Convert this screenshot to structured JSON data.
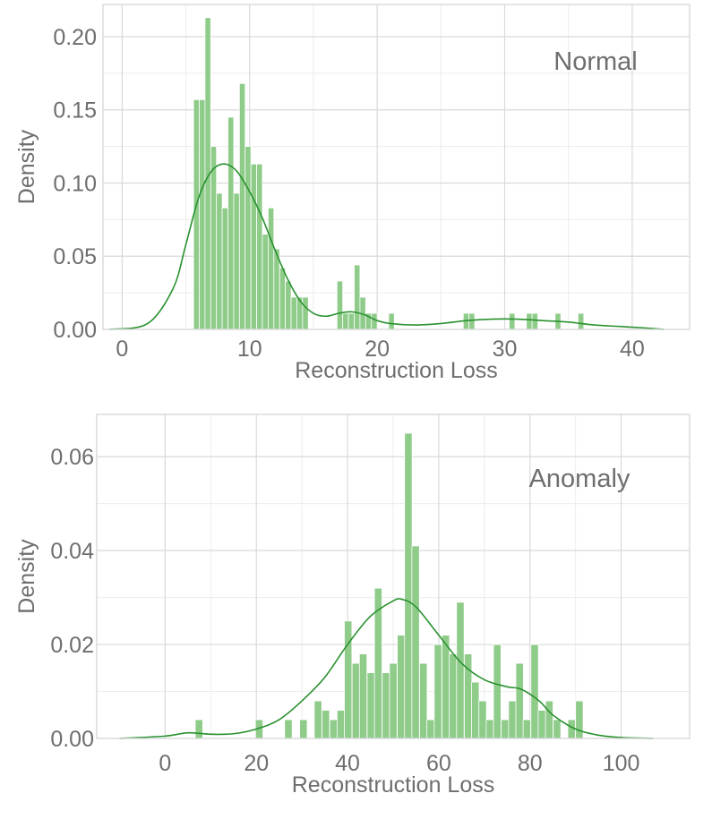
{
  "chart_data": [
    {
      "type": "histogram",
      "annotation": "Normal",
      "xlabel": "Reconstruction Loss",
      "ylabel": "Density",
      "xlim": [
        -1.5,
        44.5
      ],
      "ylim": [
        0,
        0.222
      ],
      "xticks": [
        0,
        10,
        20,
        30,
        40
      ],
      "xtick_labels": [
        "0",
        "10",
        "20",
        "30",
        "40"
      ],
      "yticks": [
        0,
        0.05,
        0.1,
        0.15,
        0.2
      ],
      "ytick_labels": [
        "0.00",
        "0.05",
        "0.10",
        "0.15",
        "0.20"
      ],
      "minor_grid_x": [
        5,
        15,
        25,
        35
      ],
      "minor_grid_y": [
        0.025,
        0.075,
        0.125,
        0.175
      ],
      "grid": true,
      "bar_color": "#8fcc8a",
      "kde_color": "#2a9130",
      "bin_width": 0.45,
      "bins": [
        [
          5.6,
          0.157
        ],
        [
          6.05,
          0.157
        ],
        [
          6.5,
          0.213
        ],
        [
          6.95,
          0.125
        ],
        [
          7.4,
          0.093
        ],
        [
          7.85,
          0.083
        ],
        [
          8.3,
          0.145
        ],
        [
          8.75,
          0.093
        ],
        [
          9.2,
          0.168
        ],
        [
          9.65,
          0.125
        ],
        [
          10.1,
          0.113
        ],
        [
          10.55,
          0.113
        ],
        [
          11.0,
          0.065
        ],
        [
          11.45,
          0.083
        ],
        [
          11.9,
          0.055
        ],
        [
          12.35,
          0.042
        ],
        [
          12.8,
          0.033
        ],
        [
          13.25,
          0.022
        ],
        [
          13.7,
          0.022
        ],
        [
          14.15,
          0.022
        ],
        [
          16.85,
          0.033
        ],
        [
          17.3,
          0.011
        ],
        [
          17.75,
          0.011
        ],
        [
          18.2,
          0.044
        ],
        [
          18.65,
          0.022
        ],
        [
          19.1,
          0.011
        ],
        [
          19.55,
          0.011
        ],
        [
          20.9,
          0.011
        ],
        [
          26.75,
          0.011
        ],
        [
          27.2,
          0.011
        ],
        [
          30.35,
          0.011
        ],
        [
          31.7,
          0.011
        ],
        [
          32.15,
          0.011
        ],
        [
          33.95,
          0.011
        ],
        [
          35.75,
          0.011
        ]
      ],
      "kde": [
        [
          -1,
          0.0
        ],
        [
          2,
          0.004
        ],
        [
          4,
          0.028
        ],
        [
          5,
          0.058
        ],
        [
          6,
          0.09
        ],
        [
          7,
          0.108
        ],
        [
          8,
          0.113
        ],
        [
          9,
          0.108
        ],
        [
          10,
          0.094
        ],
        [
          11,
          0.076
        ],
        [
          12,
          0.054
        ],
        [
          13,
          0.034
        ],
        [
          14,
          0.019
        ],
        [
          15,
          0.011
        ],
        [
          16,
          0.009
        ],
        [
          17,
          0.011
        ],
        [
          18,
          0.012
        ],
        [
          19,
          0.01
        ],
        [
          20,
          0.006
        ],
        [
          21,
          0.004
        ],
        [
          23,
          0.003
        ],
        [
          25,
          0.004
        ],
        [
          27,
          0.006
        ],
        [
          29,
          0.007
        ],
        [
          31,
          0.007
        ],
        [
          33,
          0.006
        ],
        [
          35,
          0.005
        ],
        [
          37,
          0.003
        ],
        [
          39,
          0.002
        ],
        [
          41,
          0.001
        ],
        [
          42.5,
          0.0
        ]
      ]
    },
    {
      "type": "histogram",
      "annotation": "Anomaly",
      "xlabel": "Reconstruction Loss",
      "ylabel": "Density",
      "xlim": [
        -15,
        115
      ],
      "ylim": [
        0,
        0.069
      ],
      "xticks": [
        0,
        20,
        40,
        60,
        80,
        100
      ],
      "xtick_labels": [
        "0",
        "20",
        "40",
        "60",
        "80",
        "100"
      ],
      "yticks": [
        0,
        0.02,
        0.04,
        0.06
      ],
      "ytick_labels": [
        "0.00",
        "0.02",
        "0.04",
        "0.06"
      ],
      "minor_grid_x": [
        10,
        30,
        50,
        70,
        90
      ],
      "minor_grid_y": [
        0.01,
        0.03,
        0.05
      ],
      "grid": true,
      "bar_color": "#8fcc8a",
      "kde_color": "#2a9130",
      "bin_width": 1.65,
      "bins": [
        [
          6.6,
          0.004
        ],
        [
          19.8,
          0.004
        ],
        [
          26.2,
          0.004
        ],
        [
          29.5,
          0.004
        ],
        [
          32.7,
          0.008
        ],
        [
          34.4,
          0.006
        ],
        [
          36.1,
          0.004
        ],
        [
          37.7,
          0.006
        ],
        [
          39.3,
          0.025
        ],
        [
          41.0,
          0.016
        ],
        [
          42.6,
          0.018
        ],
        [
          44.3,
          0.014
        ],
        [
          45.9,
          0.032
        ],
        [
          47.6,
          0.014
        ],
        [
          49.2,
          0.016
        ],
        [
          50.9,
          0.022
        ],
        [
          52.5,
          0.065
        ],
        [
          54.1,
          0.041
        ],
        [
          55.8,
          0.016
        ],
        [
          57.4,
          0.004
        ],
        [
          59.0,
          0.02
        ],
        [
          60.7,
          0.022
        ],
        [
          62.3,
          0.018
        ],
        [
          63.9,
          0.029
        ],
        [
          65.6,
          0.018
        ],
        [
          67.2,
          0.012
        ],
        [
          68.8,
          0.008
        ],
        [
          70.4,
          0.004
        ],
        [
          72.0,
          0.02
        ],
        [
          73.7,
          0.004
        ],
        [
          75.3,
          0.008
        ],
        [
          76.9,
          0.016
        ],
        [
          78.5,
          0.004
        ],
        [
          80.2,
          0.02
        ],
        [
          81.8,
          0.006
        ],
        [
          83.4,
          0.008
        ],
        [
          85.1,
          0.004
        ],
        [
          88.3,
          0.004
        ],
        [
          90.0,
          0.008
        ]
      ],
      "kde": [
        [
          -10,
          0.0
        ],
        [
          0,
          0.0005
        ],
        [
          5,
          0.0012
        ],
        [
          10,
          0.0009
        ],
        [
          15,
          0.001
        ],
        [
          20,
          0.002
        ],
        [
          25,
          0.004
        ],
        [
          30,
          0.008
        ],
        [
          35,
          0.013
        ],
        [
          40,
          0.02
        ],
        [
          45,
          0.026
        ],
        [
          50,
          0.0293
        ],
        [
          52,
          0.0296
        ],
        [
          55,
          0.028
        ],
        [
          60,
          0.022
        ],
        [
          65,
          0.016
        ],
        [
          70,
          0.0125
        ],
        [
          75,
          0.011
        ],
        [
          78,
          0.0105
        ],
        [
          82,
          0.008
        ],
        [
          85,
          0.005
        ],
        [
          90,
          0.002
        ],
        [
          95,
          0.0007
        ],
        [
          100,
          0.0002
        ],
        [
          107,
          0.0
        ]
      ]
    }
  ]
}
